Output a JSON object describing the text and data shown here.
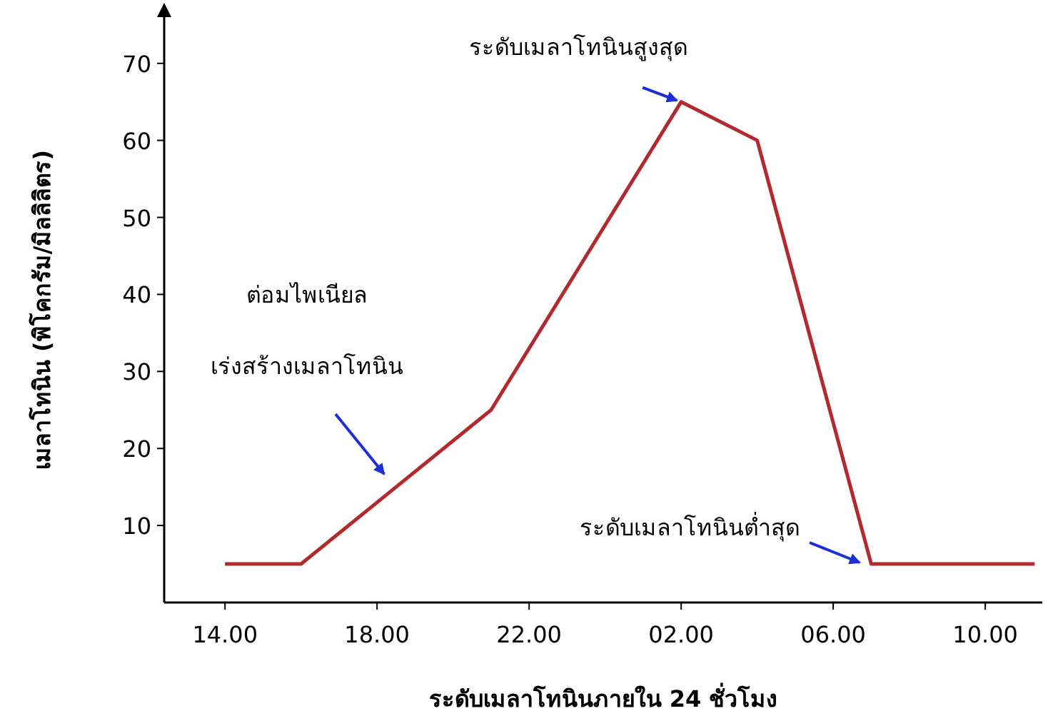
{
  "chart_data": {
    "type": "line",
    "xlabel": "ระดับเมลาโทนินภายใน 24 ชั่วโมง",
    "ylabel": "เมลาโทนิน (พิโคกรัม/มิลลิลิตร)",
    "x": [
      "2000-01-01T14:00",
      "2000-01-01T16:00",
      "2000-01-01T21:00",
      "2000-01-02T02:00",
      "2000-01-02T04:00",
      "2000-01-02T07:00",
      "2000-01-02T11:18"
    ],
    "series": [
      {
        "color": "#b22a2e",
        "values": [
          5,
          5,
          25,
          65,
          60,
          5,
          5
        ]
      }
    ],
    "xlim": [
      "2000-01-01T12:24",
      "2000-01-02T11:30"
    ],
    "ylim": [
      0,
      76
    ],
    "xticks": [
      {
        "value": "2000-01-01T14:00",
        "label": "14.00"
      },
      {
        "value": "2000-01-01T18:00",
        "label": "18.00"
      },
      {
        "value": "2000-01-01T22:00",
        "label": "22.00"
      },
      {
        "value": "2000-01-02T02:00",
        "label": "02.00"
      },
      {
        "value": "2000-01-02T06:00",
        "label": "06.00"
      },
      {
        "value": "2000-01-02T10:00",
        "label": "10.00"
      }
    ],
    "yticks": [
      10,
      20,
      30,
      40,
      50,
      60,
      70
    ],
    "annotations": [
      {
        "text": "ระดับเมลาโทนินสูงสุด",
        "x": "2000-01-02T02:00",
        "y": 65
      },
      "ต่อมไพเนียล\nเร่งสร้างเมลาโทนิน",
      "ระดับเมลาโทนินต่ำสุด"
    ]
  }
}
